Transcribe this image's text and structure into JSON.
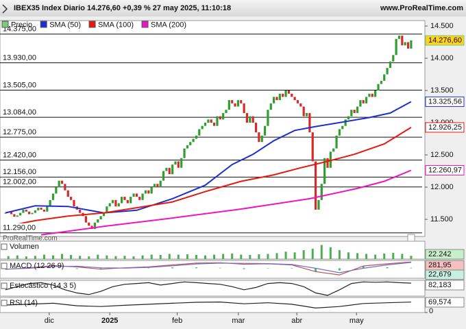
{
  "header": {
    "title": "IBEX35 Index Diario 14.276,60 +0,39 % 27 may 2025, 11:10:18",
    "site": "www.ProRealTime.com",
    "watermark": "ProRealTime.com"
  },
  "chart_data": [
    {
      "type": "candlestick",
      "up_color": "#2f9e2f",
      "down_color": "#d42a2a",
      "xlim": [
        -1.8,
        139.7
      ],
      "ylim": [
        11234,
        14585
      ],
      "xticks": [
        {
          "value": 14.7,
          "label": "dic"
        },
        {
          "value": 35,
          "label": "2025"
        },
        {
          "value": 57.6,
          "label": "feb"
        },
        {
          "value": 78.1,
          "label": "mar"
        },
        {
          "value": 97.7,
          "label": "abr"
        },
        {
          "value": 117.7,
          "label": "may"
        }
      ],
      "yticks": [
        {
          "value": 14500,
          "label": "14.500"
        },
        {
          "value": 14000,
          "label": "14.000"
        },
        {
          "value": 13500,
          "label": "13.500"
        },
        {
          "value": 13000,
          "label": "13.000"
        },
        {
          "value": 12500,
          "label": "12.500"
        },
        {
          "value": 12000,
          "label": "12.000"
        },
        {
          "value": 11500,
          "label": "11.500"
        }
      ],
      "levels": [
        {
          "value": 14375,
          "label": "14.375,00"
        },
        {
          "value": 13930,
          "label": "13.930,00"
        },
        {
          "value": 13505,
          "label": "13.505,00"
        },
        {
          "value": 13084,
          "label": "13.084,00"
        },
        {
          "value": 12775,
          "label": "12.775,00"
        },
        {
          "value": 12420,
          "label": "12.420,00"
        },
        {
          "value": 12156,
          "label": "12.156,00"
        },
        {
          "value": 12002,
          "label": "12.002,00"
        },
        {
          "value": 11290,
          "label": "11.290,00"
        }
      ],
      "series": [
        {
          "name": "Precio",
          "color": "#7cc87c",
          "box_color": "#ffd21f",
          "last_label": "14.276,60",
          "values": [
            11600,
            11620,
            11580,
            11540,
            11560,
            11600,
            11650,
            11620,
            11580,
            11600,
            11640,
            11680,
            11650,
            11620,
            11700,
            11800,
            11900,
            12000,
            12100,
            12050,
            11950,
            11850,
            11800,
            11700,
            11650,
            11600,
            11550,
            11450,
            11400,
            11350,
            11450,
            11500,
            11550,
            11600,
            11700,
            11750,
            11800,
            11700,
            11750,
            11850,
            11800,
            11750,
            11850,
            11900,
            11850,
            11800,
            11900,
            11950,
            11900,
            12000,
            12050,
            12000,
            12100,
            12250,
            12300,
            12200,
            12350,
            12400,
            12300,
            12450,
            12600,
            12650,
            12700,
            12750,
            12800,
            12900,
            12950,
            13000,
            13050,
            13000,
            12950,
            13100,
            13050,
            13150,
            13200,
            13350,
            13300,
            13250,
            13350,
            13300,
            13150,
            13000,
            13100,
            13000,
            12850,
            12700,
            12800,
            12950,
            13200,
            13300,
            13400,
            13350,
            13450,
            13400,
            13500,
            13450,
            13400,
            13350,
            13300,
            13250,
            13100,
            13150,
            12850,
            12400,
            11650,
            11800,
            12050,
            12450,
            12300,
            12550,
            12600,
            12800,
            12900,
            12950,
            13050,
            13100,
            13200,
            13150,
            13250,
            13350,
            13300,
            13400,
            13450,
            13400,
            13500,
            13600,
            13650,
            13750,
            13850,
            13950,
            14050,
            14300,
            14350,
            14200,
            14250,
            14150,
            14276.6
          ]
        },
        {
          "name": "SMA (50)",
          "color": "#1c2fd0",
          "last_label": "13.325,56",
          "x": [
            0,
            10,
            21,
            33,
            44,
            56,
            67,
            76,
            83,
            90,
            97,
            104,
            113,
            122,
            129,
            136
          ],
          "values": [
            11600,
            11710,
            11700,
            11600,
            11640,
            11820,
            12030,
            12350,
            12510,
            12720,
            12880,
            12940,
            13010,
            13080,
            13150,
            13325.56
          ]
        },
        {
          "name": "SMA (100)",
          "color": "#e8180f",
          "last_label": "12.926,25",
          "x": [
            0,
            10,
            21,
            33,
            44,
            56,
            67,
            79,
            90,
            99,
            108,
            117,
            127,
            136
          ],
          "values": [
            11390,
            11480,
            11550,
            11600,
            11680,
            11770,
            11930,
            12090,
            12190,
            12300,
            12400,
            12510,
            12670,
            12926.25
          ]
        },
        {
          "name": "SMA (200)",
          "color": "#f014be",
          "last_label": "12.260,97",
          "x": [
            12,
            33,
            56,
            79,
            102,
            118,
            127,
            136
          ],
          "values": [
            11260,
            11390,
            11520,
            11660,
            11820,
            11980,
            12090,
            12260.97
          ]
        }
      ]
    },
    {
      "type": "bar",
      "title": "Volumen",
      "ylim": [
        0,
        120000
      ],
      "series": [
        {
          "kind": "bar",
          "color": "#4caf50",
          "box_color": "#c8f0c8",
          "last_label": "22.242",
          "x": [
            1,
            4,
            7,
            10,
            13,
            16,
            19,
            22,
            25,
            28,
            31,
            34,
            37,
            40,
            43,
            46,
            49,
            52,
            55,
            58,
            61,
            64,
            67,
            70,
            73,
            76,
            79,
            82,
            85,
            88,
            91,
            94,
            97,
            100,
            103,
            106,
            109,
            112,
            115,
            118,
            121,
            124,
            127,
            130,
            133,
            136
          ],
          "values": [
            20000,
            25000,
            18000,
            22000,
            30000,
            25000,
            35000,
            28000,
            22000,
            18000,
            30000,
            25000,
            20000,
            22000,
            18000,
            25000,
            30000,
            28000,
            35000,
            30000,
            32000,
            28000,
            25000,
            30000,
            35000,
            38000,
            30000,
            28000,
            32000,
            35000,
            40000,
            50000,
            45000,
            60000,
            70000,
            95000,
            80000,
            60000,
            45000,
            40000,
            35000,
            30000,
            38000,
            42000,
            35000,
            22242
          ]
        }
      ]
    },
    {
      "type": "line",
      "title": "MACD (12 26 9)",
      "ylim": [
        -450,
        350
      ],
      "series": [
        {
          "kind": "bar",
          "color": "#3cb89a",
          "box_color": "#c8f0e0",
          "last_label": "22,679",
          "x": [
            0,
            8,
            16,
            24,
            32,
            40,
            48,
            56,
            64,
            72,
            80,
            88,
            96,
            104,
            112,
            120,
            128,
            136
          ],
          "values": [
            -10,
            20,
            40,
            -30,
            -60,
            10,
            20,
            40,
            40,
            20,
            -40,
            -10,
            -20,
            -150,
            -100,
            100,
            50,
            22.679
          ]
        },
        {
          "kind": "line",
          "color": "#c05050",
          "box_color": "#f5c0c0",
          "last_label": "281,95",
          "x": [
            0,
            8,
            16,
            24,
            32,
            40,
            48,
            56,
            64,
            72,
            80,
            88,
            96,
            104,
            112,
            120,
            128,
            136
          ],
          "values": [
            -50,
            20,
            120,
            60,
            -40,
            20,
            60,
            150,
            230,
            250,
            180,
            200,
            150,
            -150,
            -300,
            100,
            200,
            281.95
          ]
        },
        {
          "kind": "line",
          "color": "#7070c8",
          "x": [
            0,
            8,
            16,
            24,
            32,
            40,
            48,
            56,
            64,
            72,
            80,
            88,
            96,
            104,
            112,
            120,
            128,
            136
          ],
          "values": [
            -40,
            0,
            80,
            90,
            20,
            10,
            40,
            110,
            190,
            230,
            220,
            210,
            170,
            0,
            -200,
            0,
            150,
            259.27
          ]
        }
      ]
    },
    {
      "type": "line",
      "title": "Estocástico (14 3 5)",
      "ylim": [
        0,
        100
      ],
      "series": [
        {
          "kind": "line",
          "color": "#222222",
          "box_color": "#ffffff",
          "last_label": "82,183",
          "x": [
            0,
            4,
            8,
            12,
            16,
            20,
            24,
            28,
            32,
            36,
            40,
            44,
            48,
            52,
            56,
            60,
            64,
            68,
            72,
            76,
            80,
            84,
            88,
            92,
            96,
            100,
            104,
            108,
            112,
            116,
            120,
            124,
            128,
            132,
            136
          ],
          "values": [
            40,
            60,
            80,
            85,
            70,
            40,
            20,
            10,
            30,
            60,
            75,
            80,
            85,
            70,
            80,
            90,
            85,
            80,
            75,
            60,
            40,
            55,
            80,
            85,
            80,
            60,
            20,
            5,
            40,
            80,
            90,
            88,
            90,
            85,
            82.183
          ]
        }
      ]
    },
    {
      "type": "line",
      "title": "RSI (14)",
      "ylim": [
        0,
        100
      ],
      "yticks": [
        0
      ],
      "series": [
        {
          "kind": "line",
          "color": "#222222",
          "box_color": "#ffffff",
          "last_label": "69,574",
          "x": [
            0,
            8,
            16,
            24,
            32,
            40,
            48,
            56,
            64,
            72,
            80,
            88,
            96,
            104,
            112,
            120,
            128,
            136
          ],
          "values": [
            50,
            55,
            62,
            45,
            40,
            48,
            55,
            62,
            68,
            70,
            58,
            65,
            55,
            30,
            40,
            60,
            65,
            69.574
          ]
        }
      ]
    }
  ]
}
